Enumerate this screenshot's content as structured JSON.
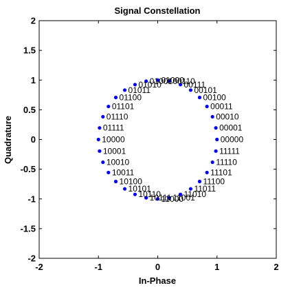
{
  "chart_data": {
    "type": "scatter",
    "title": "Signal Constellation",
    "xlabel": "In-Phase",
    "ylabel": "Quadrature",
    "xlim": [
      -2,
      2
    ],
    "ylim": [
      -2,
      2
    ],
    "xticks": [
      -2,
      -1,
      0,
      1,
      2
    ],
    "xtick_labels": [
      "-2",
      "-1",
      "0",
      "1",
      "2"
    ],
    "yticks": [
      -2,
      -1.5,
      -1,
      -0.5,
      0,
      0.5,
      1,
      1.5,
      2
    ],
    "ytick_labels": [
      "-2",
      "-1.5",
      "-1",
      "-0.5",
      "0",
      "0.5",
      "1",
      "1.5",
      "2"
    ],
    "grid": false,
    "marker_color": "#0000ff",
    "series": [
      {
        "points": [
          {
            "label": "00000",
            "x": 1.0,
            "y": 0.0
          },
          {
            "label": "00001",
            "x": 0.981,
            "y": 0.195
          },
          {
            "label": "00010",
            "x": 0.924,
            "y": 0.383
          },
          {
            "label": "00011",
            "x": 0.831,
            "y": 0.556
          },
          {
            "label": "00100",
            "x": 0.707,
            "y": 0.707
          },
          {
            "label": "00101",
            "x": 0.556,
            "y": 0.831
          },
          {
            "label": "00111",
            "x": 0.383,
            "y": 0.924
          },
          {
            "label": "00110",
            "x": 0.195,
            "y": 0.981
          },
          {
            "label": "01000",
            "x": 0.0,
            "y": 1.0
          },
          {
            "label": "01001",
            "x": -0.195,
            "y": 0.981
          },
          {
            "label": "01010",
            "x": -0.383,
            "y": 0.924
          },
          {
            "label": "01011",
            "x": -0.556,
            "y": 0.831
          },
          {
            "label": "01100",
            "x": -0.707,
            "y": 0.707
          },
          {
            "label": "01101",
            "x": -0.831,
            "y": 0.556
          },
          {
            "label": "01110",
            "x": -0.924,
            "y": 0.383
          },
          {
            "label": "01111",
            "x": -0.981,
            "y": 0.195
          },
          {
            "label": "10000",
            "x": -1.0,
            "y": 0.0
          },
          {
            "label": "10001",
            "x": -0.981,
            "y": -0.195
          },
          {
            "label": "10010",
            "x": -0.924,
            "y": -0.383
          },
          {
            "label": "10011",
            "x": -0.831,
            "y": -0.556
          },
          {
            "label": "10100",
            "x": -0.707,
            "y": -0.707
          },
          {
            "label": "10101",
            "x": -0.556,
            "y": -0.831
          },
          {
            "label": "10110",
            "x": -0.383,
            "y": -0.924
          },
          {
            "label": "10111",
            "x": -0.195,
            "y": -0.981
          },
          {
            "label": "11000",
            "x": 0.0,
            "y": -1.0
          },
          {
            "label": "11001",
            "x": 0.195,
            "y": -0.981
          },
          {
            "label": "11010",
            "x": 0.383,
            "y": -0.924
          },
          {
            "label": "11011",
            "x": 0.556,
            "y": -0.831
          },
          {
            "label": "11100",
            "x": 0.707,
            "y": -0.707
          },
          {
            "label": "11101",
            "x": 0.831,
            "y": -0.556
          },
          {
            "label": "11110",
            "x": 0.924,
            "y": -0.383
          },
          {
            "label": "11111",
            "x": 0.981,
            "y": -0.195
          }
        ]
      }
    ]
  }
}
